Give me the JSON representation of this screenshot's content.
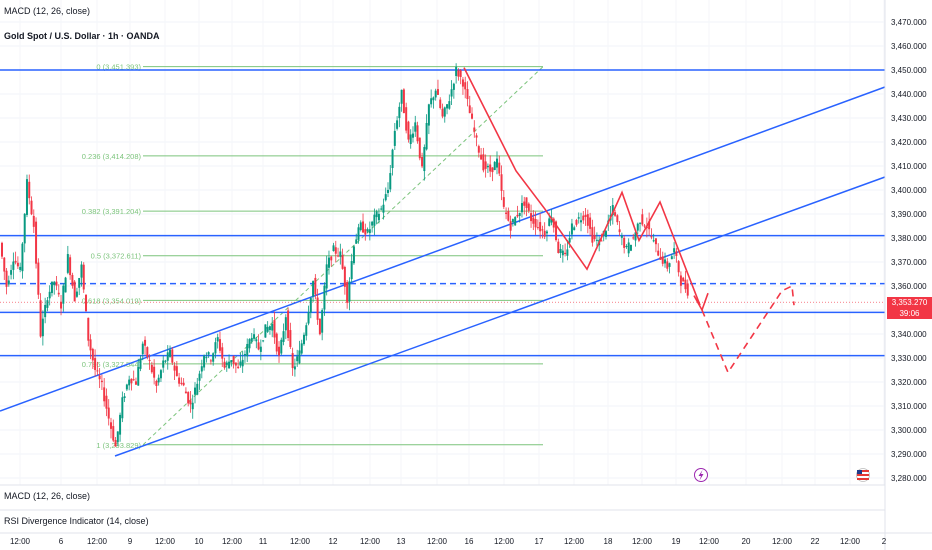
{
  "header": {
    "indicator_top": "MACD (12, 26, close)",
    "title": "Gold Spot / U.S. Dollar · 1h · OANDA"
  },
  "panes": {
    "macd_label": "MACD (12, 26, close)",
    "rsi_label": "RSI Divergence Indicator (14, close)"
  },
  "price_tag": {
    "price": "3,353.270",
    "countdown": "39:06",
    "color": "#f23645"
  },
  "icons": [
    "lightning-icon",
    "us-flag-icon"
  ],
  "colors": {
    "up": "#089981",
    "down": "#f23645",
    "channel": "#2962ff",
    "fib": "#7cc47c",
    "projection": "#f23645"
  },
  "chart_data": {
    "type": "candlestick",
    "title": "Gold Spot / U.S. Dollar · 1h · OANDA",
    "ylim": [
      3275,
      3475
    ],
    "y_ticks": [
      "3,280.000",
      "3,290.000",
      "3,300.000",
      "3,310.000",
      "3,320.000",
      "3,330.000",
      "3,340.000",
      "3,350.000",
      "3,360.000",
      "3,370.000",
      "3,380.000",
      "3,390.000",
      "3,400.000",
      "3,410.000",
      "3,420.000",
      "3,430.000",
      "3,440.000",
      "3,450.000",
      "3,460.000",
      "3,470.000"
    ],
    "x_ticks": [
      "12:00",
      "6",
      "12:00",
      "9",
      "12:00",
      "10",
      "12:00",
      "11",
      "12:00",
      "12",
      "12:00",
      "13",
      "12:00",
      "16",
      "12:00",
      "17",
      "12:00",
      "18",
      "12:00",
      "19",
      "12:00",
      "20",
      "12:00",
      "22",
      "12:00",
      "2"
    ],
    "price_path": [
      3378,
      3360,
      3372,
      3366,
      3403,
      3385,
      3340,
      3356,
      3362,
      3352,
      3372,
      3355,
      3368,
      3338,
      3325,
      3318,
      3305,
      3293,
      3312,
      3322,
      3320,
      3336,
      3328,
      3318,
      3328,
      3332,
      3322,
      3318,
      3310,
      3320,
      3332,
      3330,
      3338,
      3326,
      3330,
      3325,
      3332,
      3340,
      3334,
      3342,
      3344,
      3330,
      3348,
      3325,
      3332,
      3345,
      3362,
      3340,
      3368,
      3375,
      3373,
      3355,
      3378,
      3385,
      3382,
      3388,
      3392,
      3400,
      3425,
      3440,
      3420,
      3428,
      3408,
      3435,
      3442,
      3430,
      3438,
      3450,
      3445,
      3432,
      3420,
      3410,
      3408,
      3412,
      3392,
      3385,
      3390,
      3395,
      3388,
      3385,
      3382,
      3390,
      3375,
      3372,
      3385,
      3388,
      3390,
      3380,
      3378,
      3384,
      3392,
      3382,
      3375,
      3380,
      3388,
      3385,
      3378,
      3372,
      3368,
      3375,
      3362,
      3358
    ],
    "fibonacci": [
      {
        "level": "0",
        "price": 3451.393,
        "label": "0 (3,451.393)"
      },
      {
        "level": "0.236",
        "price": 3414.208,
        "label": "0.236 (3,414.208)"
      },
      {
        "level": "0.382",
        "price": 3391.204,
        "label": "0.382 (3,391.204)"
      },
      {
        "level": "0.5",
        "price": 3372.611,
        "label": "0.5 (3,372.611)"
      },
      {
        "level": "0.618",
        "price": 3354.019,
        "label": "0.618 (3,354.019)"
      },
      {
        "level": "0.786",
        "price": 3327.544,
        "label": "0.786 (3,327.544)"
      },
      {
        "level": "1",
        "price": 3293.829,
        "label": "1 (3,293.829)"
      }
    ],
    "horizontal_levels": [
      {
        "price": 3450,
        "style": "solid"
      },
      {
        "price": 3381,
        "style": "solid"
      },
      {
        "price": 3361,
        "style": "dashed"
      },
      {
        "price": 3349,
        "style": "solid"
      },
      {
        "price": 3331,
        "style": "solid"
      }
    ],
    "grid": true
  }
}
